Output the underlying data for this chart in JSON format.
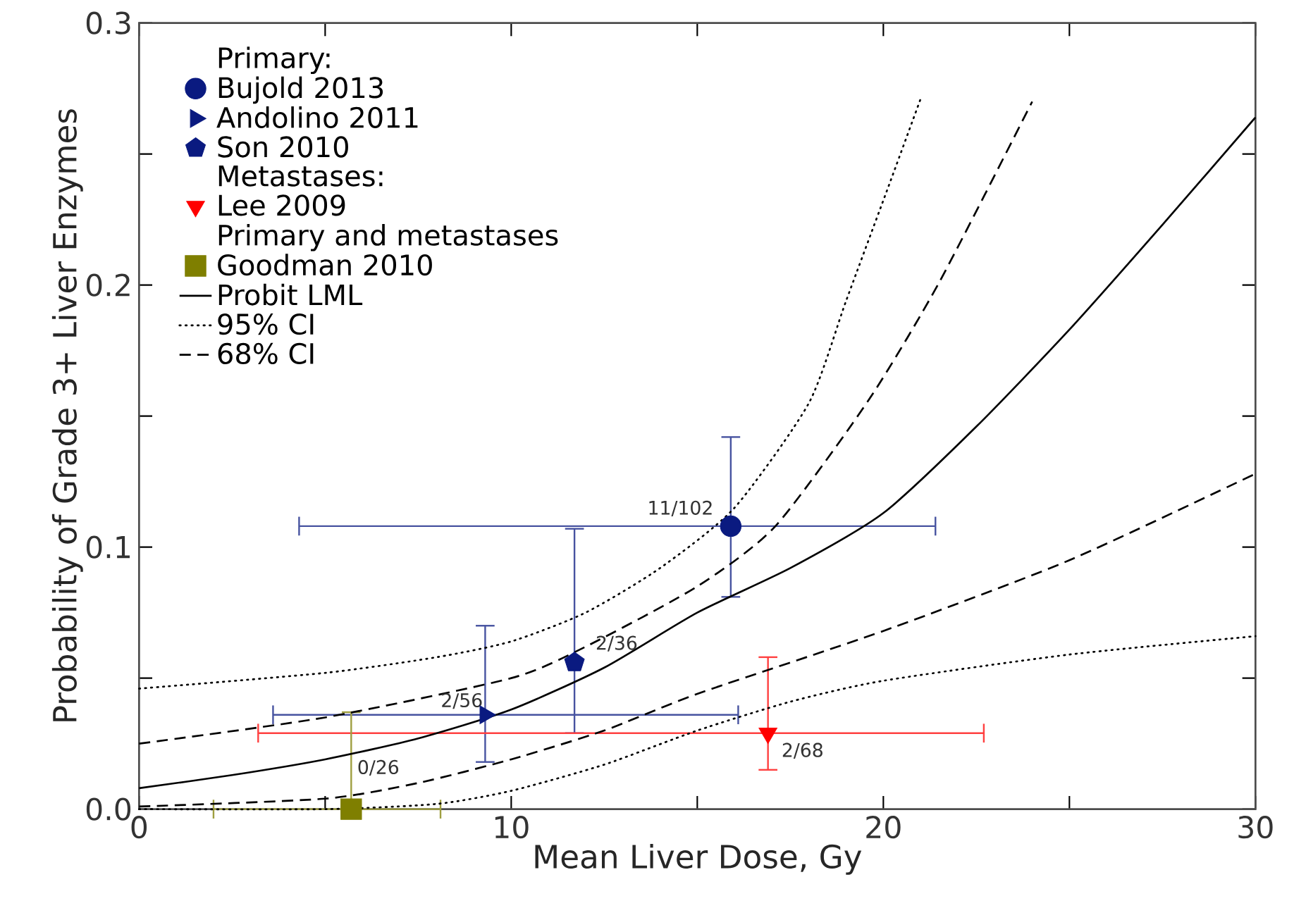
{
  "chart_data": {
    "type": "scatter",
    "xlabel": "Mean Liver Dose, Gy",
    "ylabel": "Probability of Grade 3+ Liver Enzymes",
    "xlim": [
      0,
      30
    ],
    "ylim": [
      0,
      0.3
    ],
    "xticks": [
      0,
      {
        "value": 5,
        "label": null
      },
      10,
      {
        "value": 15,
        "label": null
      },
      20,
      {
        "value": 25,
        "label": null
      },
      30
    ],
    "yticks": [
      {
        "value": 0,
        "label": "0.0"
      },
      {
        "value": 0.05,
        "label": null
      },
      {
        "value": 0.1,
        "label": "0.1"
      },
      {
        "value": 0.15,
        "label": null
      },
      {
        "value": 0.2,
        "label": "0.2"
      },
      {
        "value": 0.25,
        "label": null
      },
      {
        "value": 0.3,
        "label": "0.3"
      }
    ],
    "legend": "top left",
    "series": [
      {
        "name": "Bujold 2013",
        "marker": "circle",
        "color": "#0a1a80",
        "x": [
          15.9
        ],
        "values": [
          0.108
        ],
        "errors": [
          [
            0.081,
            0.142
          ]
        ],
        "xerrors": [
          [
            4.3,
            21.4
          ]
        ]
      },
      {
        "name": "Andolino 2011",
        "marker": "triangle-right",
        "color": "#0a1a80",
        "x": [
          9.3
        ],
        "values": [
          0.036
        ],
        "errors": [
          [
            0.018,
            0.07
          ]
        ],
        "xerrors": [
          [
            3.6,
            16.1
          ]
        ]
      },
      {
        "name": "Son 2010",
        "color": "#0a1a80",
        "x": [
          11.7
        ],
        "values": [
          0.056
        ],
        "errors": [
          [
            0.029,
            0.107
          ]
        ],
        "xerrors": [
          null
        ]
      },
      {
        "name": "Lee 2009",
        "marker": "triangle-down",
        "color": "#ff0000",
        "x": [
          16.9
        ],
        "values": [
          0.029
        ],
        "errors": [
          [
            0.015,
            0.058
          ]
        ],
        "xerrors": [
          [
            3.2,
            22.7
          ]
        ]
      },
      {
        "name": "Goodman 2010",
        "marker": "square",
        "color": "#7f7f00",
        "x": [
          5.7
        ],
        "values": [
          0.0
        ],
        "errors": [
          [
            0.0,
            0.037
          ]
        ],
        "xerrors": [
          [
            2.0,
            8.1
          ]
        ]
      },
      {
        "name": "Probit LML",
        "type": "line",
        "line_style": "solid",
        "color": "#000000",
        "x": [
          0,
          2.5,
          5,
          7.5,
          10,
          12.5,
          15,
          17.5,
          20,
          22.5,
          25,
          27.5,
          30
        ],
        "values": [
          0.008,
          0.013,
          0.019,
          0.027,
          0.038,
          0.054,
          0.075,
          0.092,
          0.113,
          0.146,
          0.183,
          0.223,
          0.264
        ]
      },
      {
        "name": "95% CI",
        "type": "line",
        "line_style": "dotted",
        "color": "#000000",
        "x": [
          0,
          5,
          8,
          10,
          12,
          14,
          16,
          18,
          19,
          20.2,
          21
        ],
        "values": [
          0.046,
          0.052,
          0.058,
          0.064,
          0.075,
          0.092,
          0.115,
          0.155,
          0.194,
          0.24,
          0.271
        ]
      },
      {
        "name": "68% CI",
        "type": "line",
        "line_style": "dashed",
        "color": "#000000",
        "x": [
          0,
          5,
          10,
          12,
          15,
          17.1,
          19.6,
          21.5,
          24
        ],
        "values": [
          0.025,
          0.035,
          0.05,
          0.062,
          0.085,
          0.108,
          0.156,
          0.201,
          0.27
        ]
      },
      {
        "type": "line",
        "line_style": "dotted",
        "color": "#000000",
        "x": [
          0,
          5,
          8,
          10,
          12.5,
          15,
          17.5,
          20,
          25,
          30
        ],
        "values": [
          0.0,
          0.0,
          0.002,
          0.007,
          0.017,
          0.03,
          0.041,
          0.049,
          0.059,
          0.066
        ]
      },
      {
        "type": "line",
        "line_style": "dashed",
        "color": "#000000",
        "x": [
          0,
          5,
          7.5,
          10,
          12.5,
          15,
          20,
          25,
          30
        ],
        "values": [
          0.001,
          0.004,
          0.01,
          0.019,
          0.03,
          0.044,
          0.068,
          0.095,
          0.128
        ]
      }
    ],
    "annotations": [
      "Primary:",
      "Metastases:",
      "Primary and metastases",
      {
        "text": "11/102",
        "x": 15.9,
        "y": 0.108
      },
      {
        "text": "2/36",
        "x": 11.7,
        "y": 0.056
      },
      {
        "text": "2/56",
        "x": 9.3,
        "y": 0.036
      },
      {
        "text": "0/26",
        "x": 5.7,
        "y": 0.0
      },
      {
        "text": "2/68",
        "x": 16.9,
        "y": 0.029
      }
    ]
  }
}
